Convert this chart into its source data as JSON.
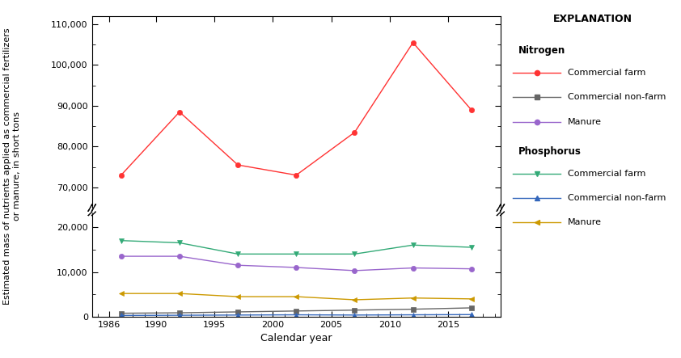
{
  "years": [
    1987,
    1992,
    1997,
    2002,
    2007,
    2012,
    2017
  ],
  "N_commercial_farm": [
    73000,
    88500,
    75500,
    73000,
    83500,
    105500,
    89000
  ],
  "N_commercial_nonfarm": [
    800,
    900,
    1100,
    1300,
    1500,
    1700,
    2000
  ],
  "N_manure": [
    13500,
    13500,
    11500,
    11000,
    10300,
    10900,
    10700
  ],
  "P_commercial_farm": [
    17000,
    16500,
    14000,
    14000,
    14000,
    16000,
    15500
  ],
  "P_commercial_nonfarm": [
    300,
    350,
    400,
    450,
    400,
    450,
    500
  ],
  "P_manure": [
    5200,
    5200,
    4500,
    4500,
    3800,
    4200,
    4000
  ],
  "colors": {
    "N_commercial_farm": "#FF3333",
    "N_commercial_nonfarm": "#666666",
    "N_manure": "#9966CC",
    "P_commercial_farm": "#33AA77",
    "P_commercial_nonfarm": "#3366BB",
    "P_manure": "#CC9900"
  },
  "markers": {
    "N_commercial_farm": "o",
    "N_commercial_nonfarm": "s",
    "N_manure": "o",
    "P_commercial_farm": "v",
    "P_commercial_nonfarm": "^",
    "P_manure": "<"
  },
  "ylabel": "Estimated mass of nutrients applied as commercial fertilizers\nor manure, in short tons",
  "xlabel": "Calendar year",
  "ylim_bottom_low": 0,
  "ylim_bottom_high": 23000,
  "ylim_top_low": 65000,
  "ylim_top_high": 112000,
  "yticks_bottom": [
    0,
    10000,
    20000
  ],
  "yticks_top": [
    70000,
    80000,
    90000,
    100000,
    110000
  ],
  "xticks": [
    1986,
    1990,
    1995,
    2000,
    2005,
    2010,
    2015
  ],
  "xlim": [
    1984.5,
    2019.5
  ]
}
